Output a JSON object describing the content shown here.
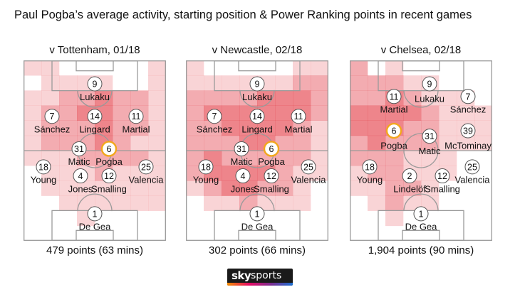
{
  "title": "Paul Pogba’s average activity, starting position & Power Ranking points in recent games",
  "logo": {
    "sky": "sky",
    "sports": "sports"
  },
  "colors": {
    "heat": "#e33a44",
    "pogba_ring": "#f2a71c",
    "pitch_line": "#9a9a9a"
  },
  "pitches": [
    {
      "match": "v Tottenham, 01/18",
      "points": "479 points (63 mins)",
      "players": [
        {
          "num": "9",
          "name": "Lukaku",
          "nx": 0.5,
          "ny": 0.13,
          "lx": 0.5,
          "ly": 0.2
        },
        {
          "num": "7",
          "name": "Sánchez",
          "nx": 0.2,
          "ny": 0.31,
          "lx": 0.2,
          "ly": 0.38
        },
        {
          "num": "14",
          "name": "Lingard",
          "nx": 0.5,
          "ny": 0.31,
          "lx": 0.5,
          "ly": 0.38
        },
        {
          "num": "11",
          "name": "Martial",
          "nx": 0.79,
          "ny": 0.31,
          "lx": 0.79,
          "ly": 0.38
        },
        {
          "num": "31",
          "name": "Matic",
          "nx": 0.39,
          "ny": 0.49,
          "lx": 0.39,
          "ly": 0.56
        },
        {
          "num": "6",
          "name": "Pogba",
          "nx": 0.6,
          "ny": 0.49,
          "lx": 0.6,
          "ly": 0.56,
          "highlight": true
        },
        {
          "num": "18",
          "name": "Young",
          "nx": 0.14,
          "ny": 0.59,
          "lx": 0.14,
          "ly": 0.66
        },
        {
          "num": "4",
          "name": "Jones",
          "nx": 0.4,
          "ny": 0.64,
          "lx": 0.4,
          "ly": 0.71
        },
        {
          "num": "12",
          "name": "Smalling",
          "nx": 0.6,
          "ny": 0.64,
          "lx": 0.6,
          "ly": 0.71
        },
        {
          "num": "25",
          "name": "Valencia",
          "nx": 0.86,
          "ny": 0.59,
          "lx": 0.86,
          "ly": 0.66
        },
        {
          "num": "1",
          "name": "De Gea",
          "nx": 0.5,
          "ny": 0.85,
          "lx": 0.5,
          "ly": 0.92
        }
      ],
      "heat": [
        [
          1,
          1,
          0,
          0,
          0,
          0,
          0,
          1
        ],
        [
          0,
          1,
          1,
          1,
          1,
          0,
          0,
          1
        ],
        [
          1,
          1,
          2,
          2,
          3,
          2,
          2,
          1
        ],
        [
          1,
          2,
          2,
          3,
          3,
          2,
          2,
          1
        ],
        [
          1,
          2,
          2,
          2,
          3,
          2,
          2,
          1
        ],
        [
          1,
          2,
          2,
          2,
          3,
          2,
          1,
          1
        ],
        [
          1,
          1,
          1,
          2,
          2,
          2,
          2,
          1
        ],
        [
          0,
          1,
          1,
          1,
          2,
          1,
          1,
          1
        ],
        [
          0,
          1,
          1,
          1,
          1,
          1,
          1,
          1
        ],
        [
          0,
          0,
          1,
          1,
          1,
          1,
          1,
          1
        ],
        [
          0,
          0,
          0,
          1,
          0,
          0,
          0,
          0
        ],
        [
          0,
          0,
          0,
          0,
          0,
          0,
          0,
          0
        ]
      ]
    },
    {
      "match": "v Newcastle, 02/18",
      "points": "302 points (66 mins)",
      "players": [
        {
          "num": "9",
          "name": "Lukaku",
          "nx": 0.5,
          "ny": 0.13,
          "lx": 0.5,
          "ly": 0.2
        },
        {
          "num": "7",
          "name": "Sánchez",
          "nx": 0.2,
          "ny": 0.31,
          "lx": 0.2,
          "ly": 0.38
        },
        {
          "num": "14",
          "name": "Lingard",
          "nx": 0.5,
          "ny": 0.31,
          "lx": 0.5,
          "ly": 0.38
        },
        {
          "num": "11",
          "name": "Martial",
          "nx": 0.79,
          "ny": 0.31,
          "lx": 0.79,
          "ly": 0.38
        },
        {
          "num": "31",
          "name": "Matic",
          "nx": 0.39,
          "ny": 0.49,
          "lx": 0.39,
          "ly": 0.56
        },
        {
          "num": "6",
          "name": "Pogba",
          "nx": 0.6,
          "ny": 0.49,
          "lx": 0.6,
          "ly": 0.56,
          "highlight": true
        },
        {
          "num": "18",
          "name": "Young",
          "nx": 0.14,
          "ny": 0.59,
          "lx": 0.14,
          "ly": 0.66
        },
        {
          "num": "4",
          "name": "Jones",
          "nx": 0.4,
          "ny": 0.64,
          "lx": 0.4,
          "ly": 0.71
        },
        {
          "num": "12",
          "name": "Smalling",
          "nx": 0.6,
          "ny": 0.64,
          "lx": 0.6,
          "ly": 0.71
        },
        {
          "num": "25",
          "name": "Valencia",
          "nx": 0.86,
          "ny": 0.59,
          "lx": 0.86,
          "ly": 0.66
        },
        {
          "num": "1",
          "name": "De Gea",
          "nx": 0.5,
          "ny": 0.85,
          "lx": 0.5,
          "ly": 0.92
        }
      ],
      "heat": [
        [
          1,
          0,
          0,
          0,
          0,
          0,
          1,
          1
        ],
        [
          1,
          1,
          1,
          1,
          1,
          1,
          2,
          2
        ],
        [
          2,
          2,
          2,
          2,
          3,
          3,
          3,
          2
        ],
        [
          2,
          3,
          3,
          3,
          3,
          3,
          3,
          2
        ],
        [
          2,
          2,
          3,
          3,
          3,
          3,
          2,
          1
        ],
        [
          2,
          2,
          2,
          3,
          3,
          2,
          2,
          1
        ],
        [
          2,
          3,
          2,
          2,
          2,
          2,
          2,
          1
        ],
        [
          2,
          3,
          3,
          3,
          3,
          2,
          1,
          1
        ],
        [
          1,
          2,
          3,
          3,
          2,
          2,
          1,
          0
        ],
        [
          0,
          1,
          1,
          2,
          1,
          1,
          1,
          0
        ],
        [
          0,
          0,
          0,
          0,
          0,
          0,
          0,
          0
        ],
        [
          0,
          0,
          0,
          0,
          0,
          0,
          0,
          0
        ]
      ]
    },
    {
      "match": "v Chelsea, 02/18",
      "points": "1,904 points (90 mins)",
      "players": [
        {
          "num": "11",
          "name": "Martial",
          "nx": 0.31,
          "ny": 0.2,
          "lx": 0.31,
          "ly": 0.27
        },
        {
          "num": "9",
          "name": "Lukaku",
          "nx": 0.56,
          "ny": 0.13,
          "lx": 0.56,
          "ly": 0.21
        },
        {
          "num": "7",
          "name": "Sánchez",
          "nx": 0.83,
          "ny": 0.2,
          "lx": 0.83,
          "ly": 0.27
        },
        {
          "num": "6",
          "name": "Pogba",
          "nx": 0.31,
          "ny": 0.39,
          "lx": 0.31,
          "ly": 0.47,
          "highlight": true
        },
        {
          "num": "31",
          "name": "Matic",
          "nx": 0.56,
          "ny": 0.42,
          "lx": 0.56,
          "ly": 0.5
        },
        {
          "num": "39",
          "name": "McTominay",
          "nx": 0.83,
          "ny": 0.39,
          "lx": 0.83,
          "ly": 0.47
        },
        {
          "num": "18",
          "name": "Young",
          "nx": 0.14,
          "ny": 0.59,
          "lx": 0.14,
          "ly": 0.66
        },
        {
          "num": "2",
          "name": "Lindelöf",
          "nx": 0.42,
          "ny": 0.64,
          "lx": 0.42,
          "ly": 0.71
        },
        {
          "num": "12",
          "name": "Smalling",
          "nx": 0.65,
          "ny": 0.64,
          "lx": 0.65,
          "ly": 0.71
        },
        {
          "num": "25",
          "name": "Valencia",
          "nx": 0.86,
          "ny": 0.59,
          "lx": 0.86,
          "ly": 0.66
        },
        {
          "num": "1",
          "name": "De Gea",
          "nx": 0.5,
          "ny": 0.85,
          "lx": 0.5,
          "ly": 0.92
        }
      ],
      "heat": [
        [
          2,
          0,
          1,
          0,
          0,
          0,
          0,
          0
        ],
        [
          2,
          2,
          2,
          1,
          1,
          0,
          0,
          0
        ],
        [
          2,
          2,
          3,
          2,
          1,
          1,
          1,
          0
        ],
        [
          3,
          3,
          3,
          3,
          2,
          1,
          1,
          1
        ],
        [
          3,
          3,
          3,
          2,
          2,
          1,
          1,
          1
        ],
        [
          2,
          3,
          2,
          2,
          2,
          1,
          1,
          1
        ],
        [
          2,
          2,
          2,
          1,
          1,
          1,
          0,
          0
        ],
        [
          1,
          2,
          2,
          1,
          1,
          1,
          0,
          0
        ],
        [
          1,
          1,
          2,
          2,
          1,
          0,
          0,
          0
        ],
        [
          0,
          1,
          2,
          1,
          1,
          0,
          0,
          0
        ],
        [
          0,
          0,
          1,
          0,
          0,
          0,
          0,
          0
        ],
        [
          0,
          0,
          0,
          0,
          0,
          0,
          0,
          0
        ]
      ]
    }
  ]
}
